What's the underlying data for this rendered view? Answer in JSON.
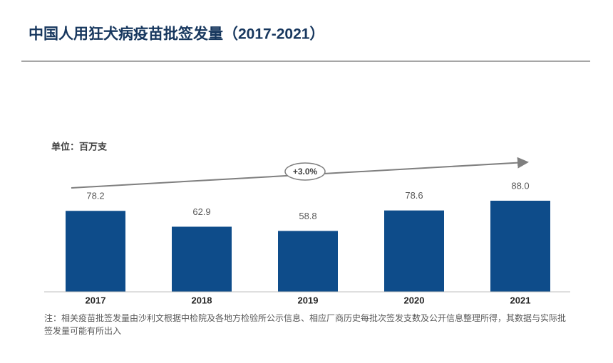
{
  "chart_data": {
    "type": "bar",
    "title": "中国人用狂犬病疫苗批签发量（2017-2021）",
    "unit": "单位：百万支",
    "annotation": "+3.0%",
    "categories": [
      "2017",
      "2018",
      "2019",
      "2020",
      "2021"
    ],
    "values": [
      78.2,
      62.9,
      58.8,
      78.6,
      88.0
    ],
    "value_labels": [
      "78.2",
      "62.9",
      "58.8",
      "78.6",
      "88.0"
    ],
    "color": "#0e4c8a",
    "footnote": "注：相关疫苗批签发量由沙利文根据中检院及各地方检验所公示信息、相应厂商历史每批次签发支数及公开信息整理所得，其数据与实际批签发量可能有所出入"
  }
}
